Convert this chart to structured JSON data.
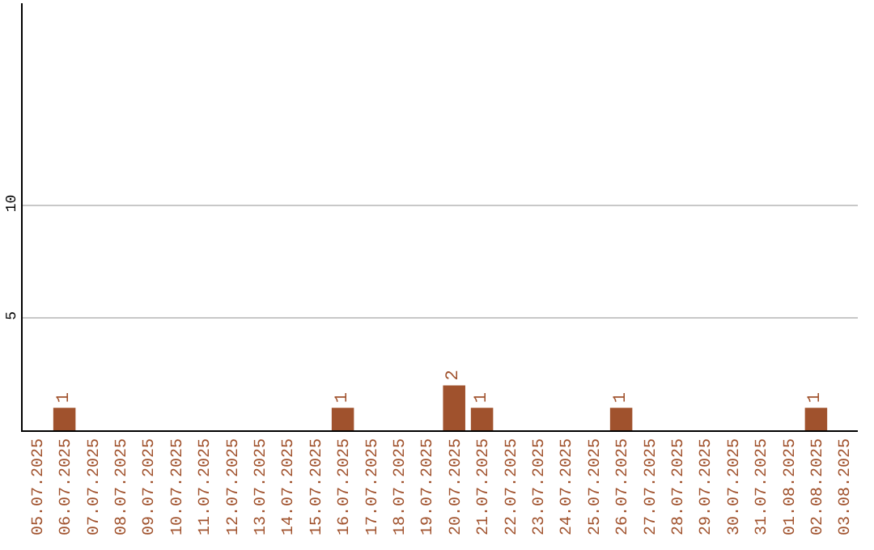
{
  "chart_data": {
    "type": "bar",
    "categories": [
      "05.07.2025",
      "06.07.2025",
      "07.07.2025",
      "08.07.2025",
      "09.07.2025",
      "10.07.2025",
      "11.07.2025",
      "12.07.2025",
      "13.07.2025",
      "14.07.2025",
      "15.07.2025",
      "16.07.2025",
      "17.07.2025",
      "18.07.2025",
      "19.07.2025",
      "20.07.2025",
      "21.07.2025",
      "22.07.2025",
      "23.07.2025",
      "24.07.2025",
      "25.07.2025",
      "26.07.2025",
      "27.07.2025",
      "28.07.2025",
      "29.07.2025",
      "30.07.2025",
      "31.07.2025",
      "01.08.2025",
      "02.08.2025",
      "03.08.2025"
    ],
    "values": [
      0,
      1,
      0,
      0,
      0,
      0,
      0,
      0,
      0,
      0,
      0,
      1,
      0,
      0,
      0,
      2,
      1,
      0,
      0,
      0,
      0,
      1,
      0,
      0,
      0,
      0,
      0,
      0,
      1,
      0
    ],
    "value_labels": [
      null,
      "1",
      null,
      null,
      null,
      null,
      null,
      null,
      null,
      null,
      null,
      "1",
      null,
      null,
      null,
      "2",
      "1",
      null,
      null,
      null,
      null,
      "1",
      null,
      null,
      null,
      null,
      null,
      null,
      "1",
      null
    ],
    "color": "#a0522d",
    "ylim": [
      0,
      19
    ],
    "yticks": [
      5,
      10
    ],
    "grid": "y"
  }
}
